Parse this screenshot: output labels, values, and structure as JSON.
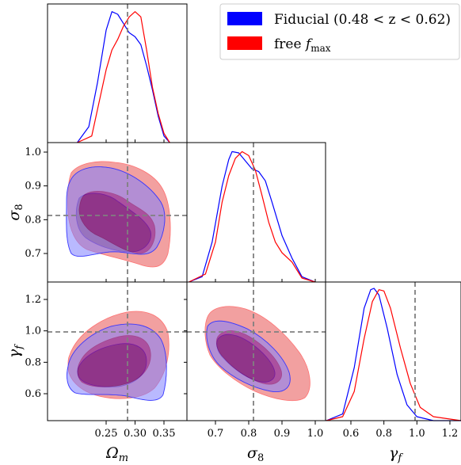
{
  "chart_data": {
    "type": "corner",
    "parameters": [
      {
        "key": "om",
        "label_main": "Ω",
        "label_sub": "m",
        "truth": 0.31,
        "ticks": [
          0.25,
          0.3,
          0.35
        ],
        "tick_labels": [
          "0.25",
          "0.30",
          "0.35"
        ],
        "range": [
          0.2,
          0.36
        ]
      },
      {
        "key": "s8",
        "label_main": "σ",
        "label_sub": "8",
        "truth": 0.81,
        "ticks": [
          0.7,
          0.8,
          0.9,
          1.0
        ],
        "tick_labels": [
          "0.7",
          "0.8",
          "0.9",
          "1.0"
        ],
        "range": [
          0.62,
          1.03
        ]
      },
      {
        "key": "gf",
        "label_main": "γ",
        "label_sub": "f",
        "truth": 1.0,
        "ticks": [
          0.6,
          0.8,
          1.0,
          1.2
        ],
        "tick_labels": [
          "0.6",
          "0.8",
          "1.0",
          "1.2"
        ],
        "range": [
          0.45,
          1.3
        ]
      }
    ],
    "series": [
      {
        "name": "Fiducial (0.48 < z < 0.62)",
        "color": "#0000ff",
        "marginals": {
          "om": {
            "x": [
              0.2,
              0.22,
              0.235,
              0.25,
              0.26,
              0.27,
              0.28,
              0.29,
              0.3,
              0.31,
              0.32,
              0.33,
              0.34,
              0.35,
              0.36
            ],
            "y": [
              0.0,
              0.12,
              0.45,
              0.85,
              0.99,
              0.97,
              0.9,
              0.83,
              0.8,
              0.74,
              0.58,
              0.4,
              0.2,
              0.05,
              0.0
            ]
          },
          "s8": {
            "x": [
              0.62,
              0.66,
              0.69,
              0.72,
              0.74,
              0.75,
              0.77,
              0.79,
              0.81,
              0.83,
              0.85,
              0.87,
              0.9,
              0.93,
              0.96,
              1.0
            ],
            "y": [
              0.0,
              0.04,
              0.3,
              0.72,
              0.92,
              0.98,
              0.97,
              0.91,
              0.85,
              0.83,
              0.76,
              0.6,
              0.35,
              0.18,
              0.04,
              0.0
            ]
          },
          "gf": {
            "x": [
              0.45,
              0.55,
              0.62,
              0.68,
              0.72,
              0.74,
              0.77,
              0.82,
              0.88,
              0.94,
              1.0,
              1.1,
              1.3
            ],
            "y": [
              0.0,
              0.05,
              0.4,
              0.85,
              0.99,
              1.0,
              0.95,
              0.7,
              0.35,
              0.12,
              0.03,
              0.0,
              0.0
            ]
          }
        }
      },
      {
        "name": "free fmax",
        "color": "#ff0000",
        "marginals": {
          "om": {
            "x": [
              0.2,
              0.225,
              0.24,
              0.25,
              0.26,
              0.27,
              0.28,
              0.29,
              0.3,
              0.31,
              0.32,
              0.33,
              0.34,
              0.35,
              0.36
            ],
            "y": [
              0.0,
              0.05,
              0.35,
              0.55,
              0.7,
              0.78,
              0.88,
              0.95,
              0.99,
              0.95,
              0.7,
              0.42,
              0.22,
              0.07,
              0.0
            ]
          },
          "s8": {
            "x": [
              0.62,
              0.67,
              0.7,
              0.72,
              0.74,
              0.76,
              0.78,
              0.8,
              0.82,
              0.84,
              0.86,
              0.88,
              0.9,
              0.93,
              0.96,
              1.0
            ],
            "y": [
              0.0,
              0.06,
              0.3,
              0.6,
              0.8,
              0.93,
              0.98,
              0.95,
              0.84,
              0.65,
              0.45,
              0.3,
              0.22,
              0.15,
              0.03,
              0.0
            ]
          },
          "gf": {
            "x": [
              0.45,
              0.55,
              0.62,
              0.68,
              0.73,
              0.77,
              0.8,
              0.84,
              0.9,
              0.96,
              1.02,
              1.1,
              1.3
            ],
            "y": [
              0.0,
              0.03,
              0.22,
              0.62,
              0.9,
              0.99,
              0.98,
              0.85,
              0.55,
              0.28,
              0.1,
              0.03,
              0.0
            ]
          }
        }
      }
    ],
    "legend": {
      "position": "top-right",
      "entries": [
        {
          "label": "Fiducial (0.48 < z < 0.62)",
          "color": "#0000ff"
        },
        {
          "label_main": "free ",
          "label_sym": "f",
          "label_sub": "max",
          "color": "#ff0000"
        }
      ]
    }
  }
}
